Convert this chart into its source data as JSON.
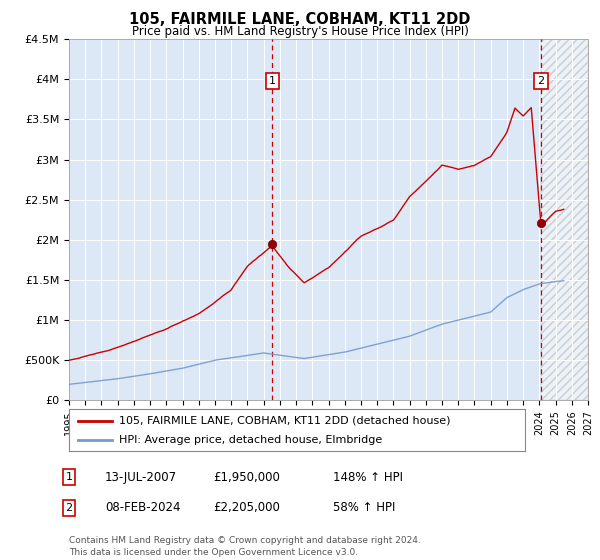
{
  "title": "105, FAIRMILE LANE, COBHAM, KT11 2DD",
  "subtitle": "Price paid vs. HM Land Registry's House Price Index (HPI)",
  "ylim": [
    0,
    4500000
  ],
  "yticks": [
    0,
    500000,
    1000000,
    1500000,
    2000000,
    2500000,
    3000000,
    3500000,
    4000000,
    4500000
  ],
  "ytick_labels": [
    "£0",
    "£500K",
    "£1M",
    "£1.5M",
    "£2M",
    "£2.5M",
    "£3M",
    "£3.5M",
    "£4M",
    "£4.5M"
  ],
  "x_start_year": 1995,
  "x_end_year": 2027,
  "legend_line1": "105, FAIRMILE LANE, COBHAM, KT11 2DD (detached house)",
  "legend_line2": "HPI: Average price, detached house, Elmbridge",
  "marker1_date": "13-JUL-2007",
  "marker1_price": 1950000,
  "marker1_hpi": "148% ↑ HPI",
  "marker1_x": 2007.53,
  "marker2_date": "08-FEB-2024",
  "marker2_price": 2205000,
  "marker2_hpi": "58% ↑ HPI",
  "marker2_x": 2024.11,
  "footnote": "Contains HM Land Registry data © Crown copyright and database right 2024.\nThis data is licensed under the Open Government Licence v3.0.",
  "hpi_color": "#7799cc",
  "price_color": "#cc0000",
  "bg_color": "#dce8f5"
}
